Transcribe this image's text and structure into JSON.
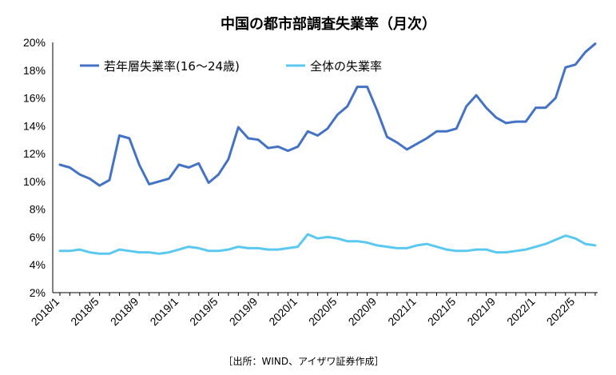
{
  "chart_data": {
    "type": "line",
    "title": "中国の都市部調査失業率（月次）",
    "source": "［出所：WIND、アイザワ証券作成］",
    "ylim": [
      2,
      20
    ],
    "y_ticks": [
      "2%",
      "4%",
      "6%",
      "8%",
      "10%",
      "12%",
      "14%",
      "16%",
      "18%",
      "20%"
    ],
    "x_ticks": [
      "2018/1",
      "2018/5",
      "2018/9",
      "2019/1",
      "2019/5",
      "2019/9",
      "2020/1",
      "2020/5",
      "2020/9",
      "2021/1",
      "2021/5",
      "2021/9",
      "2022/1",
      "2022/5"
    ],
    "grid": false,
    "legend_position": "top-left",
    "x": [
      "2018/1",
      "2018/2",
      "2018/3",
      "2018/4",
      "2018/5",
      "2018/6",
      "2018/7",
      "2018/8",
      "2018/9",
      "2018/10",
      "2018/11",
      "2018/12",
      "2019/1",
      "2019/2",
      "2019/3",
      "2019/4",
      "2019/5",
      "2019/6",
      "2019/7",
      "2019/8",
      "2019/9",
      "2019/10",
      "2019/11",
      "2019/12",
      "2020/1",
      "2020/2",
      "2020/3",
      "2020/4",
      "2020/5",
      "2020/6",
      "2020/7",
      "2020/8",
      "2020/9",
      "2020/10",
      "2020/11",
      "2020/12",
      "2021/1",
      "2021/2",
      "2021/3",
      "2021/4",
      "2021/5",
      "2021/6",
      "2021/7",
      "2021/8",
      "2021/9",
      "2021/10",
      "2021/11",
      "2021/12",
      "2022/1",
      "2022/2",
      "2022/3",
      "2022/4",
      "2022/5",
      "2022/6",
      "2022/7"
    ],
    "series": [
      {
        "name": "若年層失業率(16～24歳)",
        "color": "#4472C4",
        "values": [
          11.2,
          11.0,
          10.5,
          10.2,
          9.7,
          10.1,
          13.3,
          13.1,
          11.2,
          9.8,
          10.0,
          10.2,
          11.2,
          11.0,
          11.3,
          9.9,
          10.5,
          11.6,
          13.9,
          13.1,
          13.0,
          12.4,
          12.5,
          12.2,
          12.5,
          13.6,
          13.3,
          13.8,
          14.8,
          15.4,
          16.8,
          16.8,
          15.1,
          13.2,
          12.8,
          12.3,
          12.7,
          13.1,
          13.6,
          13.6,
          13.8,
          15.4,
          16.2,
          15.3,
          14.6,
          14.2,
          14.3,
          14.3,
          15.3,
          15.3,
          16.0,
          18.2,
          18.4,
          19.3,
          19.9
        ]
      },
      {
        "name": "全体の失業率",
        "color": "#5BC8F0",
        "values": [
          5.0,
          5.0,
          5.1,
          4.9,
          4.8,
          4.8,
          5.1,
          5.0,
          4.9,
          4.9,
          4.8,
          4.9,
          5.1,
          5.3,
          5.2,
          5.0,
          5.0,
          5.1,
          5.3,
          5.2,
          5.2,
          5.1,
          5.1,
          5.2,
          5.3,
          6.2,
          5.9,
          6.0,
          5.9,
          5.7,
          5.7,
          5.6,
          5.4,
          5.3,
          5.2,
          5.2,
          5.4,
          5.5,
          5.3,
          5.1,
          5.0,
          5.0,
          5.1,
          5.1,
          4.9,
          4.9,
          5.0,
          5.1,
          5.3,
          5.5,
          5.8,
          6.1,
          5.9,
          5.5,
          5.4
        ]
      }
    ]
  }
}
